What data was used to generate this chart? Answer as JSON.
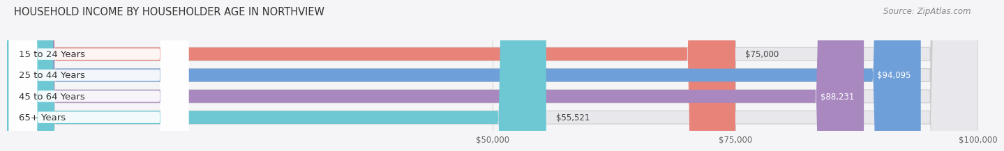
{
  "title": "HOUSEHOLD INCOME BY HOUSEHOLDER AGE IN NORTHVIEW",
  "source": "Source: ZipAtlas.com",
  "categories": [
    "15 to 24 Years",
    "25 to 44 Years",
    "45 to 64 Years",
    "65+ Years"
  ],
  "values": [
    75000,
    94095,
    88231,
    55521
  ],
  "labels": [
    "$75,000",
    "$94,095",
    "$88,231",
    "$55,521"
  ],
  "bar_colors": [
    "#E8837A",
    "#6F9FD8",
    "#A888BF",
    "#6DC8D4"
  ],
  "bar_bg_color": "#E8E8EC",
  "xmin": 0,
  "xmax": 100000,
  "xticks": [
    50000,
    75000,
    100000
  ],
  "xtick_labels": [
    "$50,000",
    "$75,000",
    "$100,000"
  ],
  "title_fontsize": 10.5,
  "source_fontsize": 8.5,
  "label_fontsize": 8.5,
  "cat_fontsize": 9.5,
  "tick_fontsize": 8.5,
  "bar_height": 0.62,
  "background_color": "#F5F5F7",
  "label_inside_threshold": 80000
}
